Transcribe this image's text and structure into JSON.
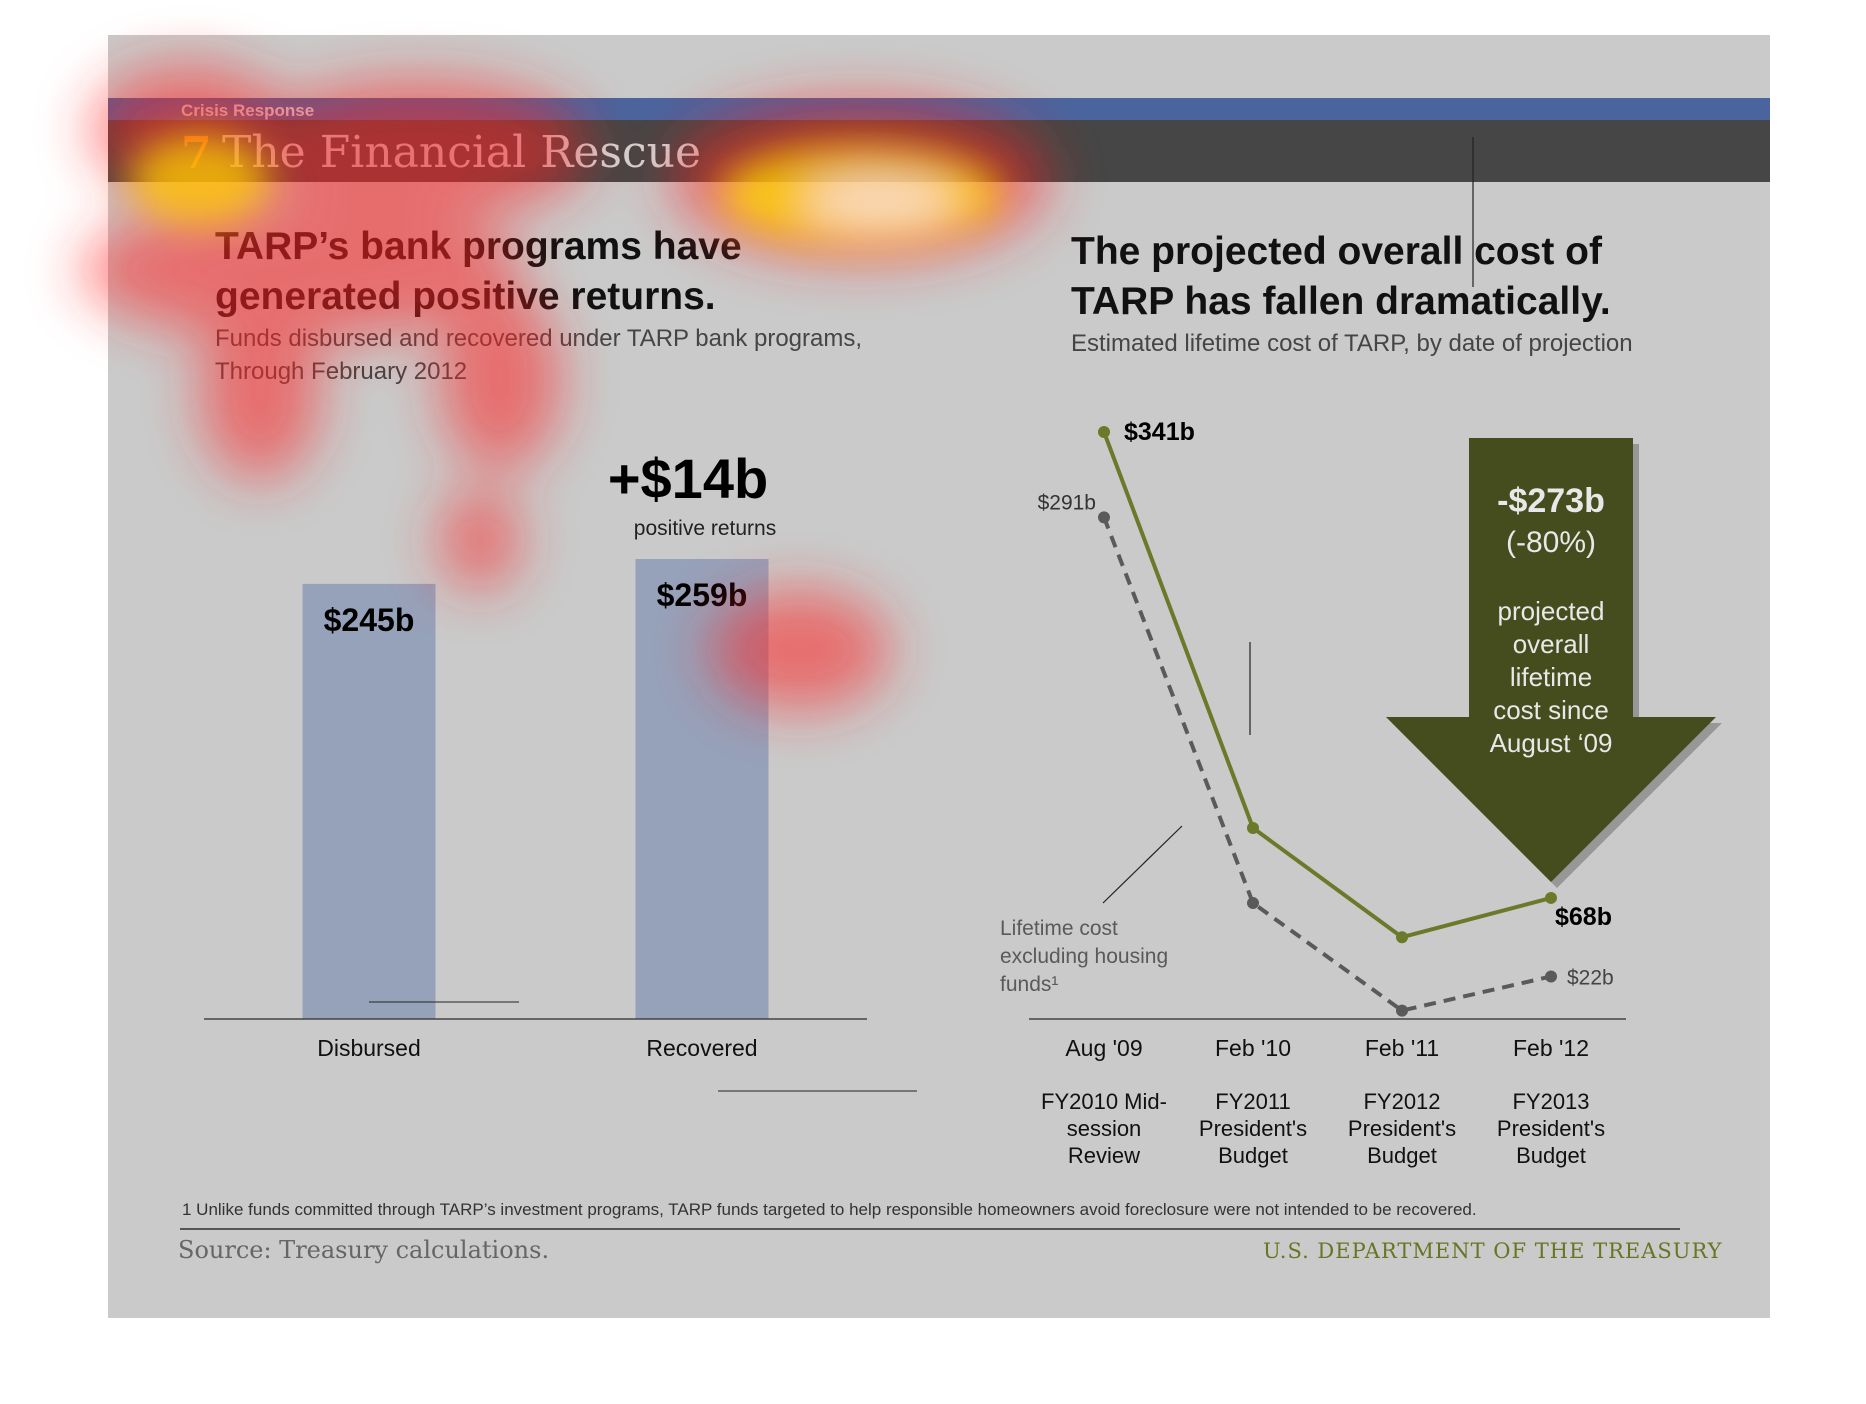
{
  "section_label": "Crisis Response",
  "slide_number": "7",
  "slide_title": "The Financial Rescue",
  "left_headline_line1": "TARP’s bank programs have",
  "left_headline_line2": "generated positive returns.",
  "left_sub_line1": "Funds disbursed and recovered under TARP bank programs,",
  "left_sub_line2": "Through February 2012",
  "right_headline_line1": "The projected overall cost of",
  "right_headline_line2": "TARP has fallen dramatically.",
  "right_sub": "Estimated lifetime cost of TARP, by date of projection",
  "footnote": "1 Unlike funds committed through TARP’s investment programs, TARP funds targeted to help responsible homeowners avoid foreclosure were not intended to be recovered.",
  "source": "Source: Treasury calculations.",
  "agency": "U.S. DEPARTMENT OF THE TREASURY",
  "chart_data": [
    {
      "type": "bar",
      "categories": [
        "Disbursed",
        "Recovered"
      ],
      "values": [
        245,
        259
      ],
      "value_labels": [
        "$245b",
        "$259b"
      ],
      "ylim": [
        0,
        300
      ],
      "bar_color": "#96a2ba",
      "annotation": {
        "value": "+$14b",
        "label": "positive returns"
      }
    },
    {
      "type": "line",
      "categories": [
        "Aug '09",
        "Feb '10",
        "Feb '11",
        "Feb '12"
      ],
      "category_sublabels": [
        [
          "FY2010 Mid-",
          "session",
          "Review"
        ],
        [
          "FY2011",
          "President's",
          "Budget"
        ],
        [
          "FY2012",
          "President's",
          "Budget"
        ],
        [
          "FY2013",
          "President's",
          "Budget"
        ]
      ],
      "ylim": [
        0,
        341
      ],
      "series": [
        {
          "values": [
            341,
            109,
            45,
            68
          ],
          "color": "#6a7a2a",
          "style": "solid",
          "point_labels": [
            "$341b",
            "",
            "",
            "$68b"
          ]
        },
        {
          "name": "Lifetime cost excluding housing funds¹",
          "values": [
            291,
            65,
            2,
            22
          ],
          "color": "#5a5a5a",
          "style": "dashed",
          "point_labels": [
            "$291b",
            "",
            "",
            "$22b"
          ]
        }
      ],
      "series_label_lines": [
        "Lifetime cost",
        "excluding housing",
        "funds¹"
      ],
      "callout": {
        "value": "-$273b",
        "percent": "(-80%)",
        "text_lines": [
          "projected",
          "overall",
          "lifetime",
          "cost since",
          "August ‘09"
        ],
        "color": "#454d1e"
      }
    }
  ]
}
